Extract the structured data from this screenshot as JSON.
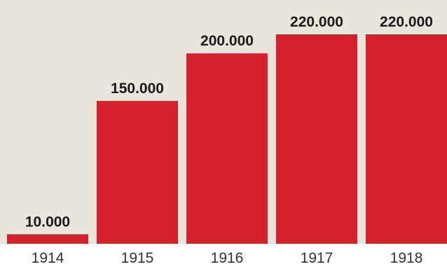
{
  "colors": {
    "plot_background": "#e8e5dc",
    "bar": "#d4212b",
    "value_text": "#1a1a1a",
    "tick_text": "#333333",
    "page_background": "#ffffff"
  },
  "chart_data": {
    "type": "bar",
    "title": "",
    "xlabel": "",
    "ylabel": "",
    "categories": [
      "1914",
      "1915",
      "1916",
      "1917",
      "1918"
    ],
    "values": [
      10000,
      150000,
      200000,
      220000,
      220000
    ],
    "value_labels": [
      "10.000",
      "150.000",
      "200.000",
      "220.000",
      "220.000"
    ],
    "ylim": [
      0,
      220000
    ],
    "grid": false,
    "legend": "none"
  }
}
